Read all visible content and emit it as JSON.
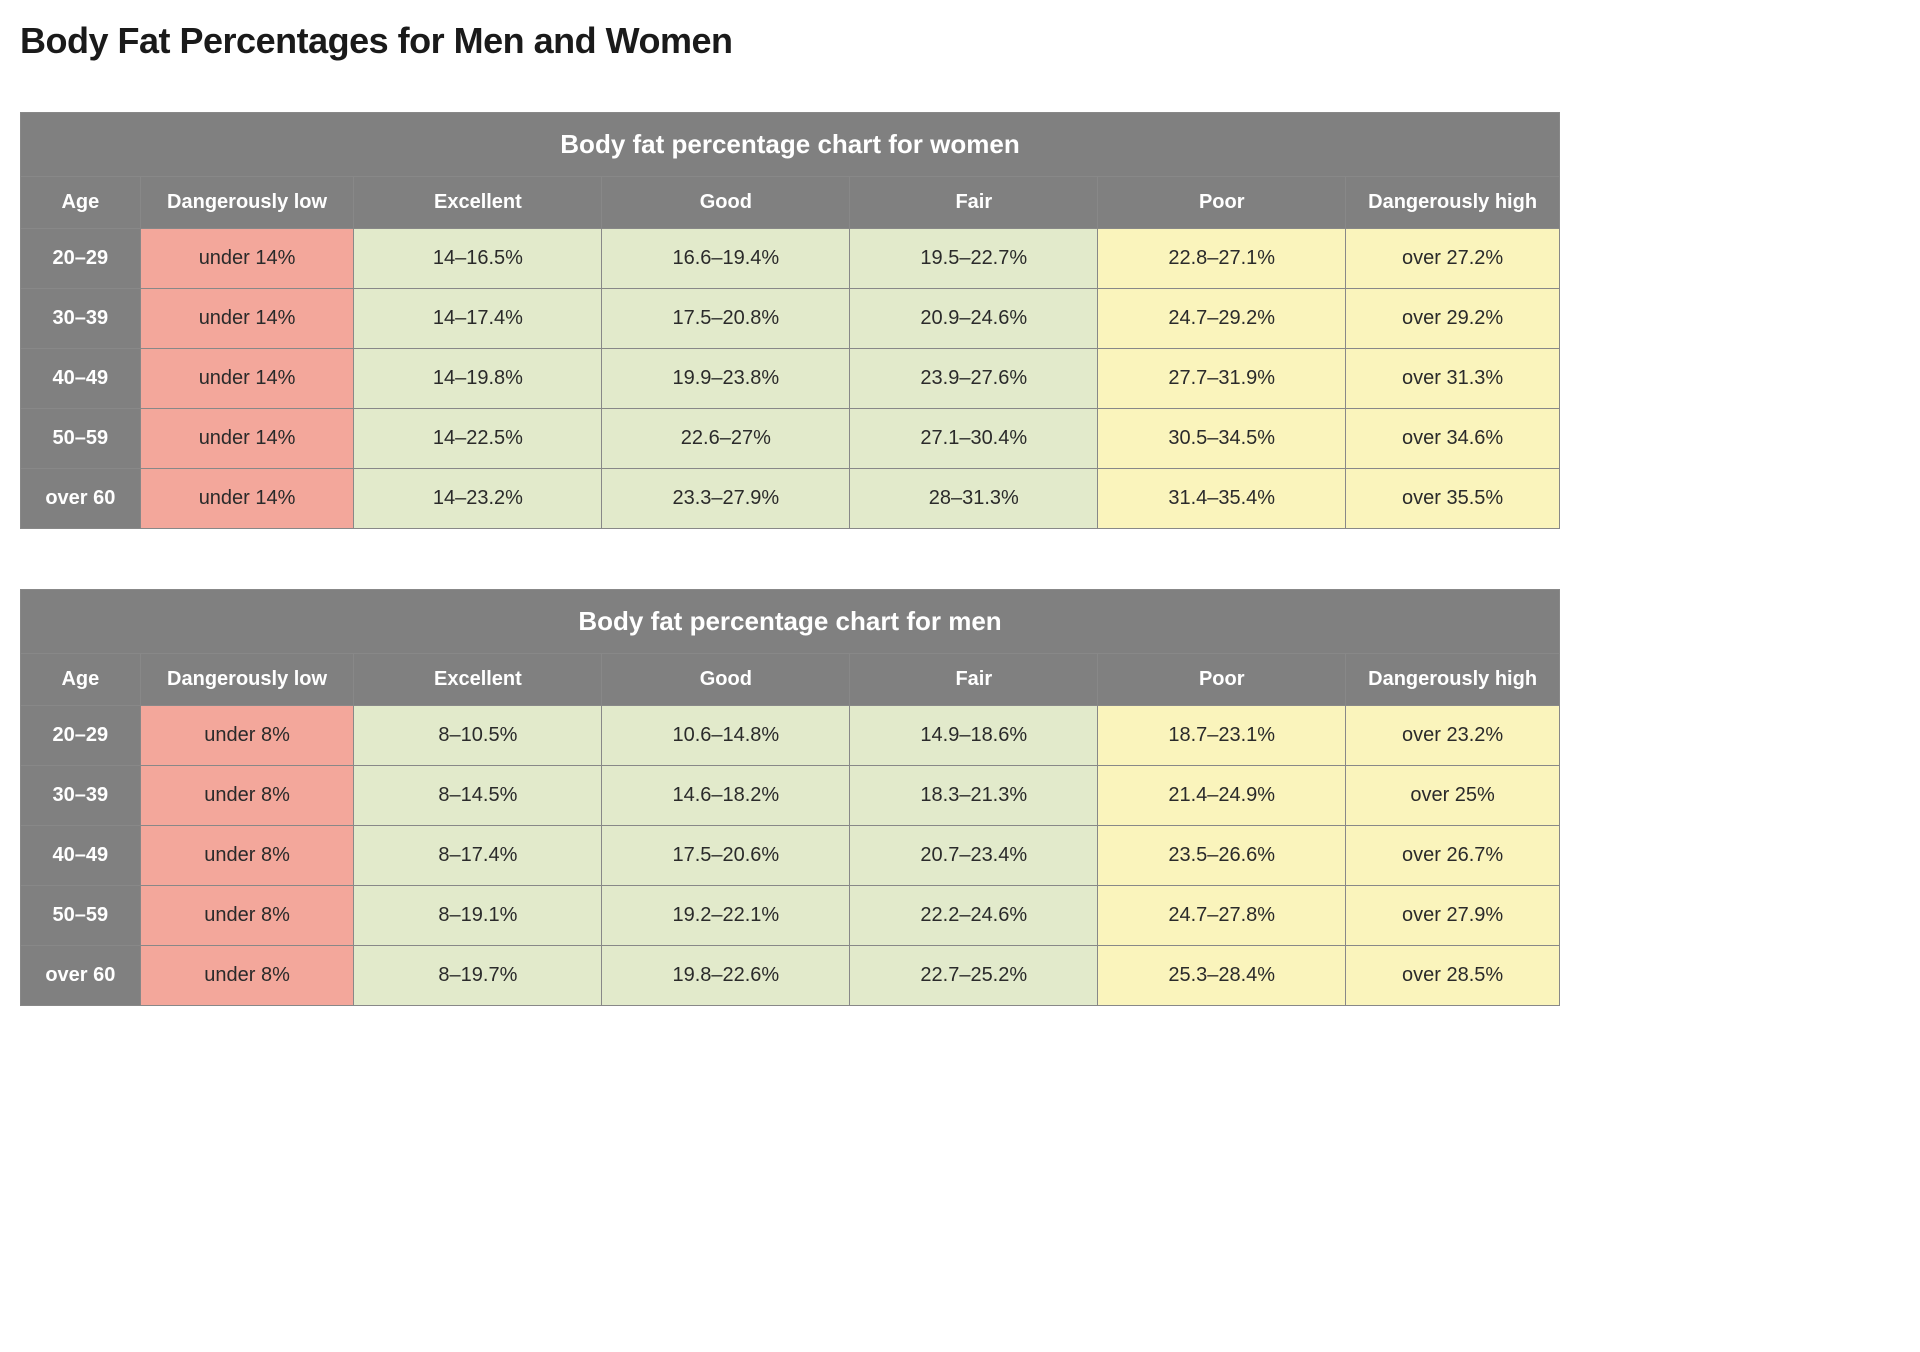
{
  "page_title": "Body Fat Percentages for Men and Women",
  "colors": {
    "header_bg": "#808080",
    "header_text": "#ffffff",
    "red": "#f3a79b",
    "green": "#e2eacb",
    "yellow": "#faf4bc",
    "cell_text": "#2a2a2a",
    "border": "#888888",
    "title_text": "#1a1a1a",
    "page_bg": "#ffffff"
  },
  "typography": {
    "page_title_fontsize": 36,
    "chart_title_fontsize": 26,
    "header_fontsize": 20,
    "cell_fontsize": 20,
    "font_family": "-apple-system, Segoe UI, Arial, sans-serif"
  },
  "column_color_classes": [
    "cell-red",
    "cell-green",
    "cell-green",
    "cell-green",
    "cell-yellow",
    "cell-yellow"
  ],
  "columns": [
    "Age",
    "Dangerously low",
    "Excellent",
    "Good",
    "Fair",
    "Poor",
    "Dangerously high"
  ],
  "tables": {
    "women": {
      "title": "Body fat percentage chart for women",
      "rows": [
        {
          "age": "20–29",
          "cells": [
            "under 14%",
            "14–16.5%",
            "16.6–19.4%",
            "19.5–22.7%",
            "22.8–27.1%",
            "over 27.2%"
          ]
        },
        {
          "age": "30–39",
          "cells": [
            "under 14%",
            "14–17.4%",
            "17.5–20.8%",
            "20.9–24.6%",
            "24.7–29.2%",
            "over 29.2%"
          ]
        },
        {
          "age": "40–49",
          "cells": [
            "under 14%",
            "14–19.8%",
            "19.9–23.8%",
            "23.9–27.6%",
            "27.7–31.9%",
            "over 31.3%"
          ]
        },
        {
          "age": "50–59",
          "cells": [
            "under 14%",
            "14–22.5%",
            "22.6–27%",
            "27.1–30.4%",
            "30.5–34.5%",
            "over 34.6%"
          ]
        },
        {
          "age": "over 60",
          "cells": [
            "under 14%",
            "14–23.2%",
            "23.3–27.9%",
            "28–31.3%",
            "31.4–35.4%",
            "over 35.5%"
          ]
        }
      ]
    },
    "men": {
      "title": "Body fat percentage chart for men",
      "rows": [
        {
          "age": "20–29",
          "cells": [
            "under 8%",
            "8–10.5%",
            "10.6–14.8%",
            "14.9–18.6%",
            "18.7–23.1%",
            "over 23.2%"
          ]
        },
        {
          "age": "30–39",
          "cells": [
            "under 8%",
            "8–14.5%",
            "14.6–18.2%",
            "18.3–21.3%",
            "21.4–24.9%",
            "over 25%"
          ]
        },
        {
          "age": "40–49",
          "cells": [
            "under 8%",
            "8–17.4%",
            "17.5–20.6%",
            "20.7–23.4%",
            "23.5–26.6%",
            "over 26.7%"
          ]
        },
        {
          "age": "50–59",
          "cells": [
            "under 8%",
            "8–19.1%",
            "19.2–22.1%",
            "22.2–24.6%",
            "24.7–27.8%",
            "over 27.9%"
          ]
        },
        {
          "age": "over 60",
          "cells": [
            "under 8%",
            "8–19.7%",
            "19.8–22.6%",
            "22.7–25.2%",
            "25.3–28.4%",
            "over 28.5%"
          ]
        }
      ]
    }
  }
}
